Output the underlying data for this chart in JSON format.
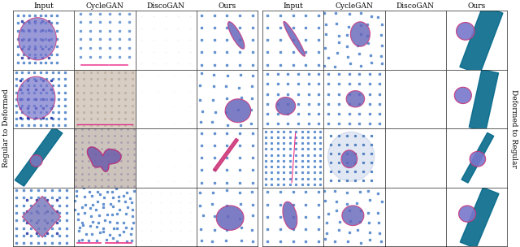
{
  "col_labels_left": [
    "Input",
    "CycleGAN",
    "DiscoGAN",
    "Ours"
  ],
  "col_labels_right": [
    "Input",
    "CycleGAN",
    "DiscoGAN",
    "Ours"
  ],
  "side_label_left": "Regular to Deformed",
  "side_label_right": "Deformed to Regular",
  "grid_color": "#222222",
  "bg_color": "#ffffff",
  "dot_color_blue": "#5588cc",
  "dot_color_sq": "#4477bb",
  "shape_fill": "#6666bb",
  "shape_fill2": "#7777cc",
  "shape_edge": "#cc3377",
  "teal_color": "#007799",
  "teal_dark": "#006688",
  "label_fontsize": 6.5,
  "side_label_fontsize": 6.5
}
